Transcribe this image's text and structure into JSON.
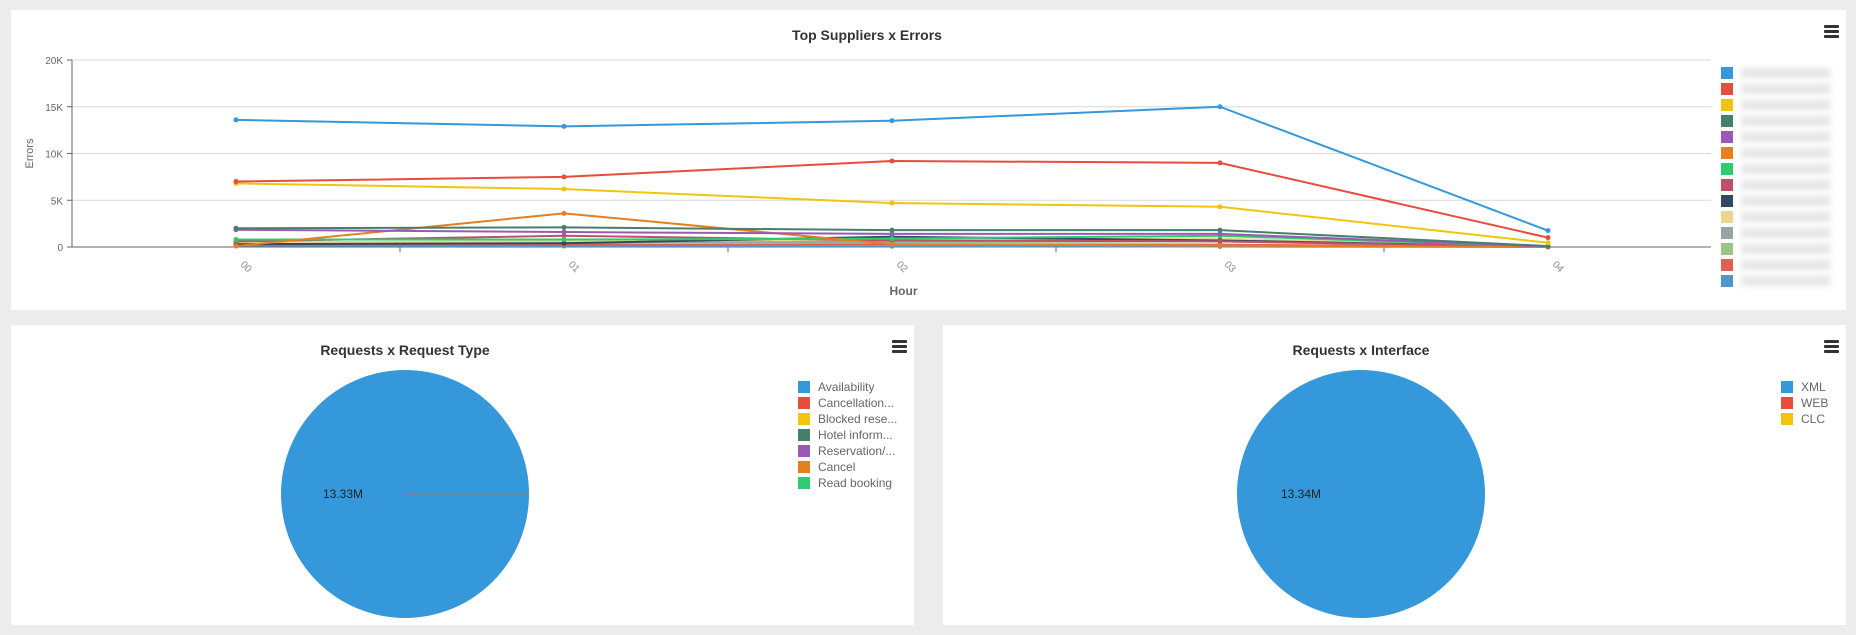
{
  "top_chart": {
    "title": "Top Suppliers x Errors",
    "menu_icon": "hamburger-menu-icon"
  },
  "left_chart": {
    "title": "Requests x Request Type",
    "menu_icon": "hamburger-menu-icon",
    "slice_label": "13.33M"
  },
  "right_chart": {
    "title": "Requests x Interface",
    "menu_icon": "hamburger-menu-icon",
    "slice_label": "13.34M"
  },
  "chart_data": [
    {
      "type": "line",
      "title": "Top Suppliers x Errors",
      "xlabel": "Hour",
      "ylabel": "Errors",
      "x": [
        "00",
        "01",
        "02",
        "03",
        "04"
      ],
      "yticks": [
        "0",
        "5K",
        "10K",
        "15K",
        "20K"
      ],
      "ylim": [
        0,
        20000
      ],
      "grid": true,
      "legend_position": "right",
      "legend_labels_redacted": true,
      "series": [
        {
          "name": "[redacted 1]",
          "color": "#3498db",
          "values": [
            13600,
            12900,
            13500,
            15000,
            1750
          ]
        },
        {
          "name": "[redacted 2]",
          "color": "#e74c3c",
          "values": [
            7000,
            7500,
            9200,
            9000,
            1000
          ]
        },
        {
          "name": "[redacted 3]",
          "color": "#f1c40f",
          "values": [
            6800,
            6200,
            4700,
            4300,
            450
          ]
        },
        {
          "name": "[redacted 4]",
          "color": "#45806a",
          "values": [
            2000,
            2100,
            1800,
            1800,
            100
          ]
        },
        {
          "name": "[redacted 5]",
          "color": "#9b59b6",
          "values": [
            1850,
            1600,
            1400,
            1400,
            50
          ]
        },
        {
          "name": "[redacted 6]",
          "color": "#e67e22",
          "values": [
            100,
            3600,
            300,
            150,
            0
          ]
        },
        {
          "name": "[redacted 7]",
          "color": "#2ecc71",
          "values": [
            800,
            800,
            900,
            1200,
            60
          ]
        },
        {
          "name": "[redacted 8]",
          "color": "#c0506a",
          "values": [
            600,
            1200,
            700,
            600,
            40
          ]
        },
        {
          "name": "[redacted 9]",
          "color": "#34495e",
          "values": [
            300,
            400,
            1100,
            700,
            30
          ]
        },
        {
          "name": "[redacted 10]",
          "color": "#e8d890",
          "values": [
            500,
            600,
            800,
            900,
            30
          ]
        },
        {
          "name": "[redacted 11]",
          "color": "#95a5a6",
          "values": [
            400,
            500,
            600,
            700,
            20
          ]
        },
        {
          "name": "[redacted 12]",
          "color": "#9cc38a",
          "values": [
            450,
            550,
            500,
            600,
            20
          ]
        },
        {
          "name": "[redacted 13]",
          "color": "#e06050",
          "values": [
            200,
            250,
            300,
            250,
            10
          ]
        },
        {
          "name": "[redacted 14]",
          "color": "#5596c8",
          "values": [
            150,
            100,
            80,
            50,
            5
          ]
        }
      ]
    },
    {
      "type": "pie",
      "title": "Requests x Request Type",
      "legend_position": "right",
      "slices": [
        {
          "label": "Availability",
          "color": "#3498db",
          "value": 13330000,
          "data_label": "13.33M"
        },
        {
          "label": "Cancellation...",
          "color": "#e74c3c",
          "value": 0
        },
        {
          "label": "Blocked rese...",
          "color": "#f1c40f",
          "value": 0
        },
        {
          "label": "Hotel inform...",
          "color": "#45806a",
          "value": 0
        },
        {
          "label": "Reservation/...",
          "color": "#9b59b6",
          "value": 0
        },
        {
          "label": "Cancel",
          "color": "#e67e22",
          "value": 0
        },
        {
          "label": "Read booking",
          "color": "#2ecc71",
          "value": 0
        }
      ]
    },
    {
      "type": "pie",
      "title": "Requests x Interface",
      "legend_position": "right",
      "slices": [
        {
          "label": "XML",
          "color": "#3498db",
          "value": 13340000,
          "data_label": "13.34M"
        },
        {
          "label": "WEB",
          "color": "#e74c3c",
          "value": 0
        },
        {
          "label": "CLC",
          "color": "#f1c40f",
          "value": 0
        }
      ]
    }
  ]
}
